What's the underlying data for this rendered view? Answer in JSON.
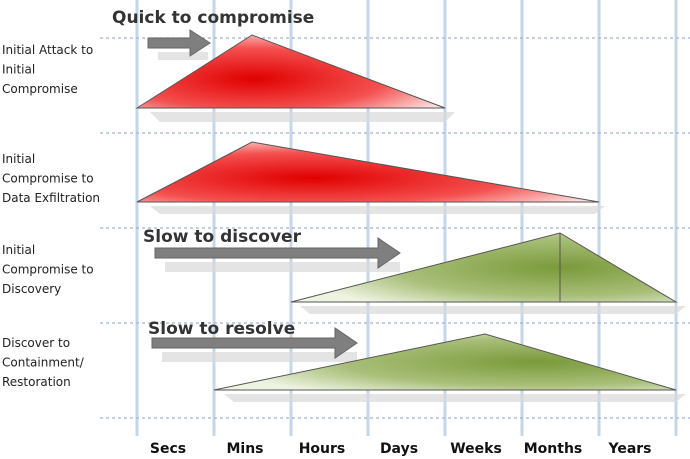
{
  "time_axis": [
    "Secs",
    "Mins",
    "Hours",
    "Days",
    "Weeks",
    "Months",
    "Years"
  ],
  "rows": [
    {
      "label": [
        "Initial Attack to",
        "Initial",
        "Compromise"
      ]
    },
    {
      "label": [
        "Initial",
        "Compromise to",
        "Data Exfiltration"
      ]
    },
    {
      "label": [
        "Initial",
        "Compromise to",
        "Discovery"
      ]
    },
    {
      "label": [
        "Discover to",
        "Containment/",
        "Restoration"
      ]
    }
  ],
  "annotations": [
    "Quick to compromise",
    "Slow to discover",
    "Slow to resolve"
  ]
}
